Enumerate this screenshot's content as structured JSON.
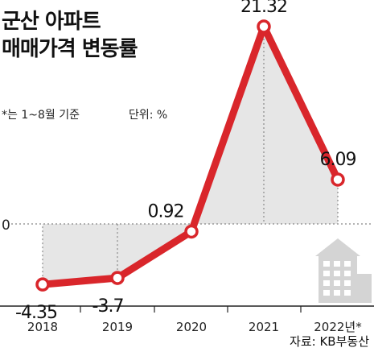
{
  "header": {
    "title_line1": "군산 아파트",
    "title_line2": "매매가격 변동률",
    "note": "*는 1~8월 기준",
    "unit": "단위: %"
  },
  "footer": {
    "source": "자료: KB부동산"
  },
  "colors": {
    "line": "#d9262b",
    "fill": "#e6e6e6",
    "marker_fill": "#ffffff",
    "axis": "#222222",
    "grid": "#888888",
    "icon": "#d4d4d4"
  },
  "chart_data": {
    "type": "line",
    "title": "군산 아파트 매매가격 변동률",
    "categories": [
      "2018",
      "2019",
      "2020",
      "2021",
      "2022년*"
    ],
    "values": [
      -4.35,
      -3.7,
      0.92,
      21.32,
      6.09
    ],
    "value_labels": [
      "-4.35",
      "-3.7",
      "0.92",
      "21.32",
      "6.09"
    ],
    "y_zero_label": "0",
    "ylim": [
      -6.5,
      23
    ],
    "unit": "%",
    "area_fill_to_zero": true,
    "vertical_drop_lines": true,
    "grid": false,
    "legend": "none",
    "decoration": "building-icon"
  }
}
